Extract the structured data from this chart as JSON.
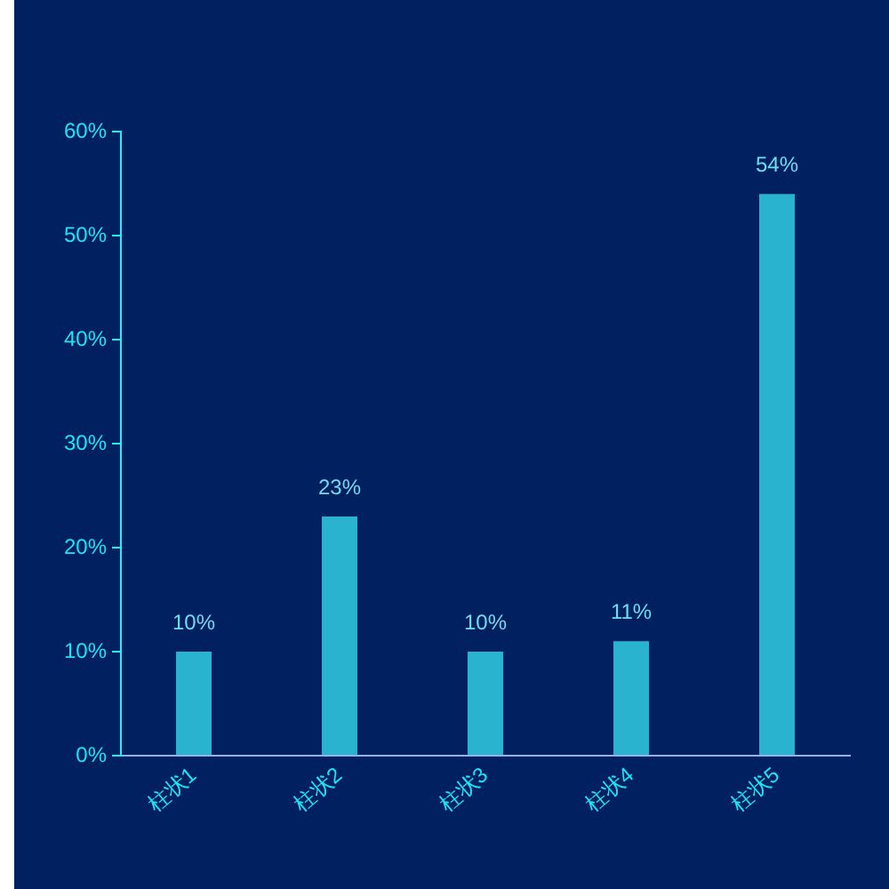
{
  "chart_data": {
    "type": "bar",
    "categories": [
      "柱状1",
      "柱状2",
      "柱状3",
      "柱状4",
      "柱状5"
    ],
    "values": [
      10,
      23,
      10,
      11,
      54
    ],
    "color": "#2ab3cf",
    "value_labels": [
      "10%",
      "23%",
      "10%",
      "11%",
      "54%"
    ],
    "ylim": [
      0,
      60
    ],
    "yticks": [
      {
        "value": 0,
        "label": "0%"
      },
      {
        "value": 10,
        "label": "10%"
      },
      {
        "value": 20,
        "label": "20%"
      },
      {
        "value": 30,
        "label": "30%"
      },
      {
        "value": 40,
        "label": "40%"
      },
      {
        "value": 50,
        "label": "50%"
      },
      {
        "value": 60,
        "label": "60%"
      }
    ]
  }
}
